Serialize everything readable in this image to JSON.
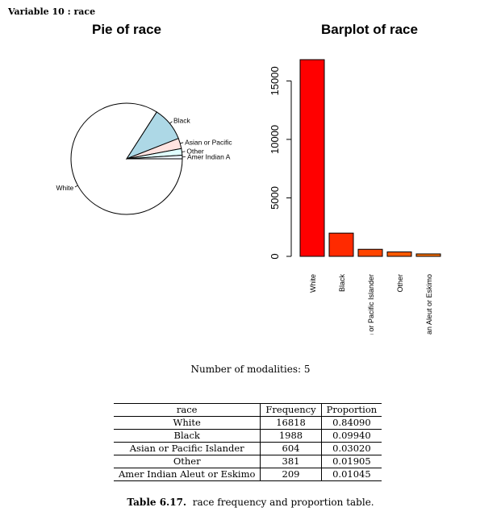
{
  "heading": "Variable 10 :  race",
  "chart_data": [
    {
      "type": "pie",
      "title": "Pie of race",
      "categories": [
        "White",
        "Black",
        "Asian or Pacific Islander",
        "Other",
        "Amer Indian Aleut or Eskimo"
      ],
      "display_labels": [
        "White",
        "Black",
        "Asian or Pacific",
        "Other",
        "Amer Indian A"
      ],
      "values": [
        16818,
        1988,
        604,
        381,
        209
      ],
      "colors": [
        "#ffffff",
        "#add8e6",
        "#ffe4e1",
        "#e0ffff",
        "#f0f8ff"
      ]
    },
    {
      "type": "bar",
      "title": "Barplot of race",
      "categories": [
        "White",
        "Black",
        "Asian or Pacific Islander",
        "Other",
        "Amer Indian Aleut or Eskimo"
      ],
      "values": [
        16818,
        1988,
        604,
        381,
        209
      ],
      "ylim": [
        0,
        16818
      ],
      "yticks": [
        0,
        5000,
        10000,
        15000
      ],
      "colors": [
        "#ff0000",
        "#ff2a00",
        "#ff4400",
        "#ff5a00",
        "#ff7000"
      ]
    }
  ],
  "modalities_text": "Number of modalities: 5",
  "table": {
    "headers": [
      "race",
      "Frequency",
      "Proportion"
    ],
    "rows": [
      [
        "White",
        "16818",
        "0.84090"
      ],
      [
        "Black",
        "1988",
        "0.09940"
      ],
      [
        "Asian or Pacific Islander",
        "604",
        "0.03020"
      ],
      [
        "Other",
        "381",
        "0.01905"
      ],
      [
        "Amer Indian Aleut or Eskimo",
        "209",
        "0.01045"
      ]
    ]
  },
  "caption": {
    "label": "Table 6.17.",
    "text": "race frequency and proportion table."
  }
}
